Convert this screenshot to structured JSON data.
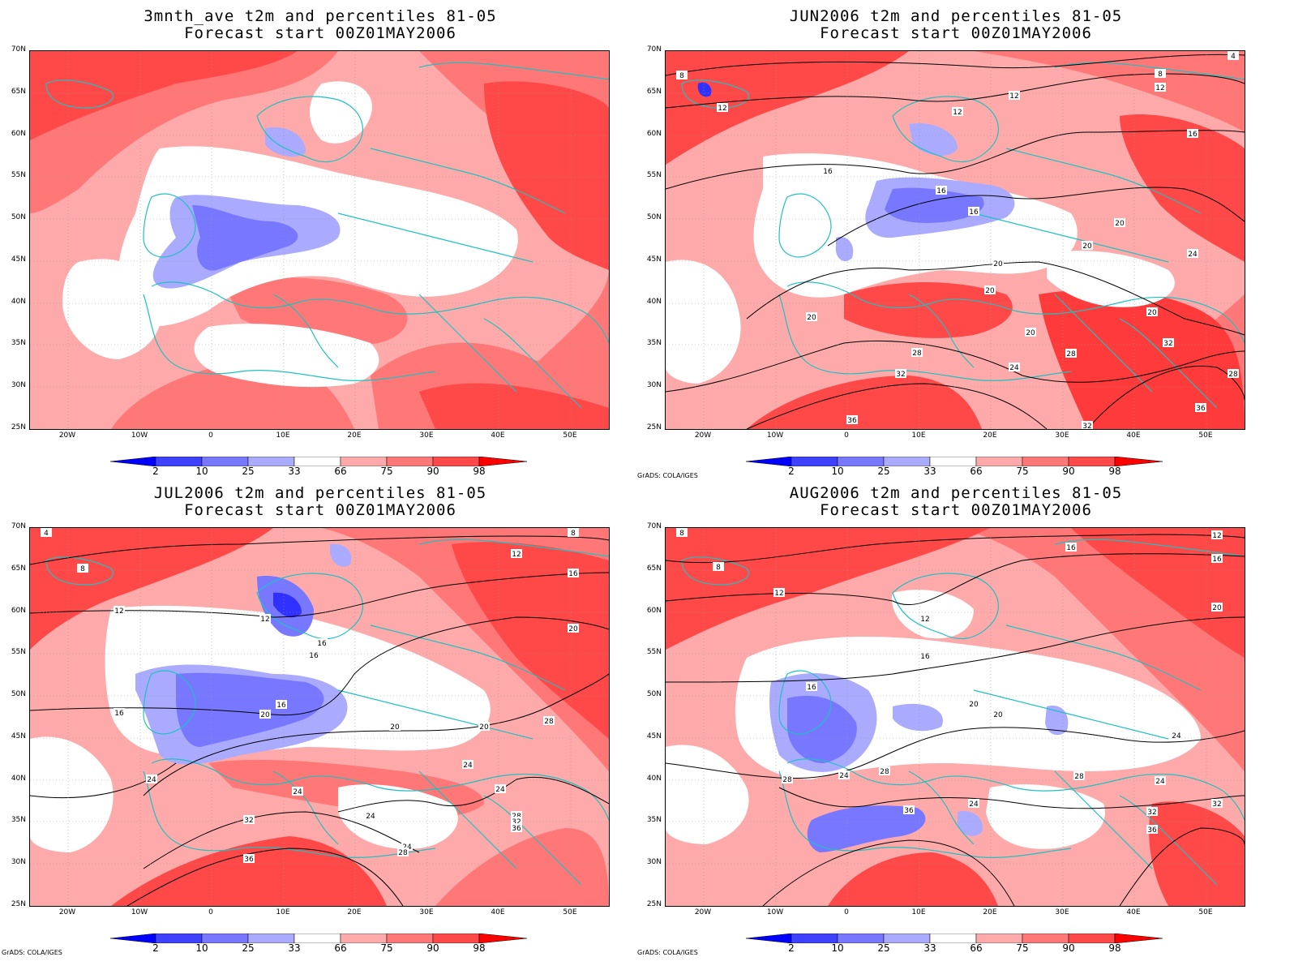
{
  "panels": [
    {
      "title_line1": "3mnth_ave t2m and percentiles 81-05",
      "title_line2": "Forecast start 00Z01MAY2006",
      "credit": "",
      "contour_labels": []
    },
    {
      "title_line1": "JUN2006 t2m and percentiles 81-05",
      "title_line2": "Forecast start 00Z01MAY2006",
      "credit": "GrADS: COLA/IGES",
      "contour_labels": [
        "4",
        "8",
        "8",
        "12",
        "12",
        "12",
        "12",
        "16",
        "16",
        "16",
        "16",
        "20",
        "20",
        "20",
        "20",
        "20",
        "20",
        "20",
        "24",
        "24",
        "28",
        "28",
        "28",
        "32",
        "32",
        "36",
        "36",
        "32"
      ]
    },
    {
      "title_line1": "JUL2006 t2m and percentiles 81-05",
      "title_line2": "Forecast start 00Z01MAY2006",
      "credit": "GrADS: COLA/IGES",
      "contour_labels": [
        "4",
        "8",
        "8",
        "12",
        "12",
        "12",
        "16",
        "16",
        "16",
        "16",
        "16",
        "20",
        "20",
        "20",
        "20",
        "24",
        "24",
        "24",
        "24",
        "24",
        "24",
        "28",
        "28",
        "28",
        "32",
        "32",
        "36",
        "36"
      ]
    },
    {
      "title_line1": "AUG2006 t2m and percentiles 81-05",
      "title_line2": "Forecast start 00Z01MAY2006",
      "credit": "GrADS: COLA/IGES",
      "contour_labels": [
        "8",
        "8",
        "12",
        "12",
        "12",
        "16",
        "16",
        "16",
        "16",
        "20",
        "20",
        "20",
        "24",
        "24",
        "24",
        "24",
        "28",
        "28",
        "28",
        "32",
        "32",
        "36",
        "36"
      ]
    }
  ],
  "lat_labels": [
    "70N",
    "65N",
    "60N",
    "55N",
    "50N",
    "45N",
    "40N",
    "35N",
    "30N",
    "25N"
  ],
  "lon_labels": [
    "20W",
    "10W",
    "0",
    "10E",
    "20E",
    "30E",
    "40E",
    "50E"
  ],
  "colorbar": {
    "labels": [
      "2",
      "10",
      "25",
      "33",
      "66",
      "75",
      "90",
      "98"
    ],
    "colors": [
      "#0000ff",
      "#4040ff",
      "#7777ff",
      "#aaaaff",
      "#ffffff",
      "#ffaaaa",
      "#ff7777",
      "#ff4848",
      "#ff0000"
    ]
  },
  "colors": {
    "coast": "#20c0c0",
    "contour": "#000000",
    "red_strong": "#ff3a3a",
    "red_mid": "#ff7777",
    "red_light": "#ffaaaa",
    "blue_light": "#aaaaff",
    "blue_mid": "#7777ff",
    "blue_strong": "#3030ff"
  }
}
